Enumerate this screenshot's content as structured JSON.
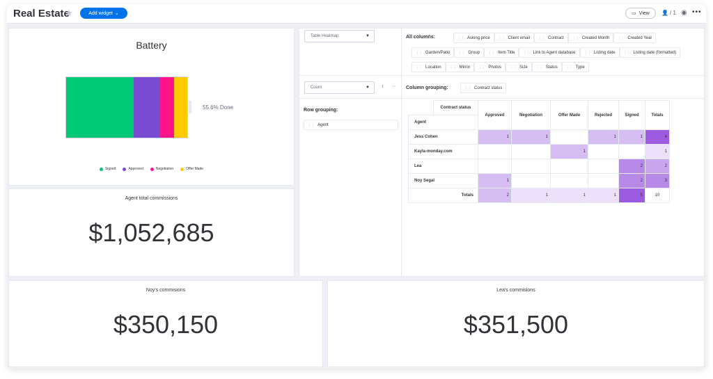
{
  "header": {
    "title": "Real Estate",
    "add_widget_label": "Add widget",
    "view_label": "View",
    "members_count": "/ 1"
  },
  "colors": {
    "signed": "#00c875",
    "approved": "#784bd1",
    "negotiation": "#ff158a",
    "offer_made": "#ffcb00",
    "accent": "#0073ea"
  },
  "battery": {
    "title": "Battery",
    "done_label": "55.6% Done",
    "segments": [
      {
        "name": "Signed",
        "fraction": 0.556,
        "color": "#00c875"
      },
      {
        "name": "Approved",
        "fraction": 0.222,
        "color": "#784bd1"
      },
      {
        "name": "Negotiation",
        "fraction": 0.111,
        "color": "#ff158a"
      },
      {
        "name": "Offer Made",
        "fraction": 0.111,
        "color": "#ffcb00"
      }
    ],
    "legend": [
      "Signed",
      "Approved",
      "Negotiation",
      "Offer Made"
    ]
  },
  "agent_total": {
    "title": "Agent total commissions",
    "value": "$1,052,685"
  },
  "noy": {
    "title": "Noy's commisions",
    "value": "$350,150"
  },
  "lea": {
    "title": "Lea's commisions",
    "value": "$351,500"
  },
  "pivot": {
    "view_select": "Table Heatmap",
    "count_select": "Count",
    "all_columns_label": "All columns:",
    "all_columns": [
      "Asking price",
      "Client email",
      "Contract",
      "Created Month",
      "Created Year",
      "Garden/Patio",
      "Group",
      "Item Title",
      "Link to Agent database",
      "Listing date",
      "Listing date (formatted)",
      "Location",
      "Mirror",
      "Photos",
      "Size",
      "Status",
      "Type"
    ],
    "column_grouping_label": "Column grouping:",
    "column_grouping": "Contract status",
    "row_grouping_label": "Row grouping:",
    "row_grouping": "Agent",
    "table": {
      "corner_col": "Contract status",
      "corner_row": "Agent",
      "columns": [
        "Approved",
        "Negotiation",
        "Offer Made",
        "Rejected",
        "Signed",
        "Totals"
      ],
      "rows": [
        {
          "label": "Jess Cohen",
          "values": [
            "1",
            "1",
            "",
            "1",
            "1",
            "4"
          ]
        },
        {
          "label": "Kayla-monday.com",
          "values": [
            "",
            "",
            "1",
            "",
            "",
            "1"
          ]
        },
        {
          "label": "Lea",
          "values": [
            "",
            "",
            "",
            "",
            "2",
            "2"
          ]
        },
        {
          "label": "Noy Segal",
          "values": [
            "1",
            "",
            "",
            "",
            "2",
            "3"
          ]
        },
        {
          "label": "Totals",
          "values": [
            "2",
            "1",
            "1",
            "1",
            "5",
            "10"
          ]
        }
      ]
    }
  }
}
